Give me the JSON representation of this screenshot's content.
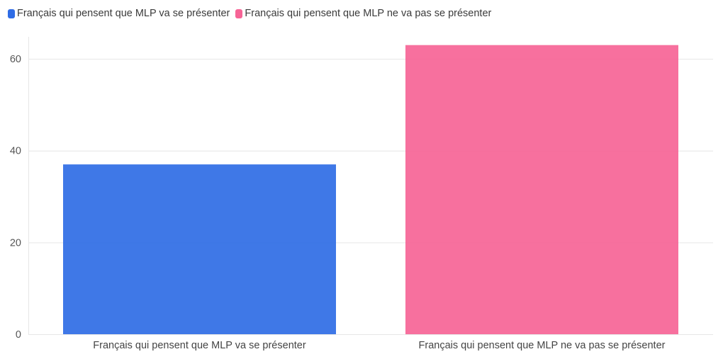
{
  "legend": [
    {
      "label": "Français qui pensent que MLP va se présenter",
      "color": "#2f6ce5"
    },
    {
      "label": "Français qui pensent que MLP ne va pas se présenter",
      "color": "#f66496"
    }
  ],
  "chart_data": {
    "type": "bar",
    "categories": [
      "Français qui pensent que MLP va se présenter",
      "Français qui pensent que MLP ne va pas se présenter"
    ],
    "values": [
      37,
      63
    ],
    "colors": [
      "#2f6ce5",
      "#f66496"
    ],
    "ylim": [
      0,
      64.8
    ],
    "yticks": [
      0,
      20,
      40,
      60
    ],
    "grid": true,
    "legend_position": "top-left"
  }
}
